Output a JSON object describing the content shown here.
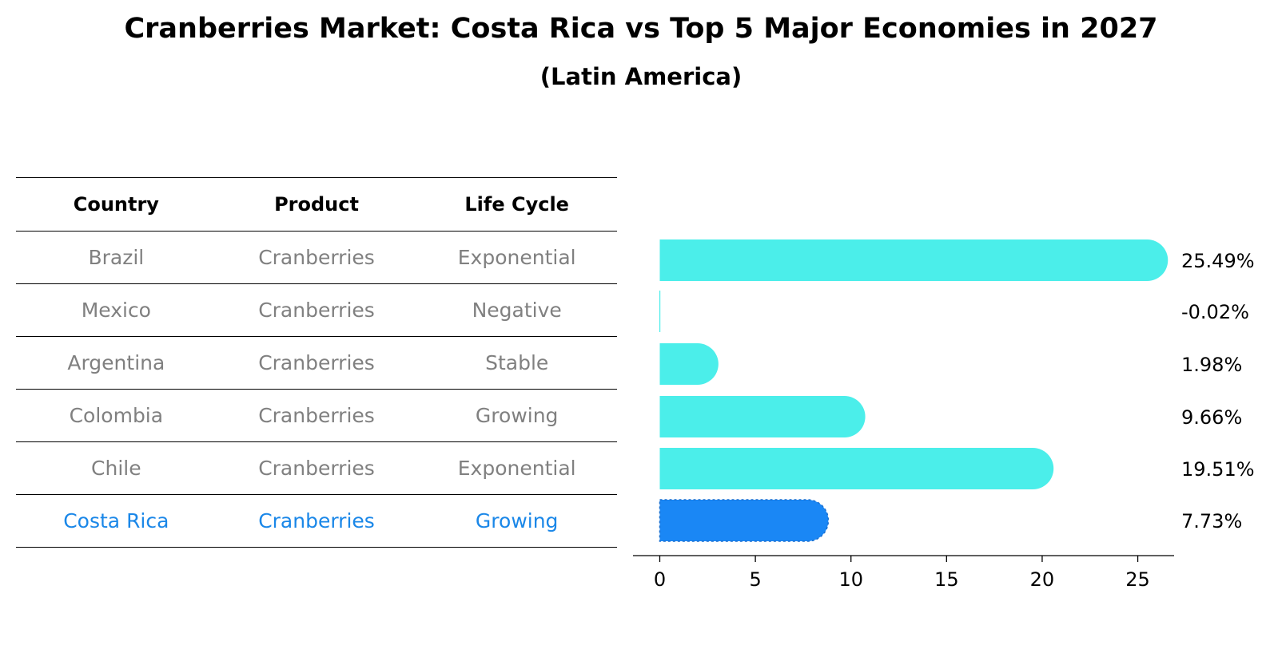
{
  "title": "Cranberries Market: Costa Rica vs Top 5 Major Economies in 2027",
  "subtitle": "(Latin America)",
  "table": {
    "headers": [
      "Country",
      "Product",
      "Life Cycle"
    ],
    "rows": [
      {
        "country": "Brazil",
        "product": "Cranberries",
        "life_cycle": "Exponential"
      },
      {
        "country": "Mexico",
        "product": "Cranberries",
        "life_cycle": "Negative"
      },
      {
        "country": "Argentina",
        "product": "Cranberries",
        "life_cycle": "Stable"
      },
      {
        "country": "Colombia",
        "product": "Cranberries",
        "life_cycle": "Growing"
      },
      {
        "country": "Chile",
        "product": "Cranberries",
        "life_cycle": "Exponential"
      },
      {
        "country": "Costa Rica",
        "product": "Cranberries",
        "life_cycle": "Growing"
      }
    ]
  },
  "chart_data": {
    "type": "bar",
    "orientation": "horizontal",
    "categories": [
      "Brazil",
      "Mexico",
      "Argentina",
      "Colombia",
      "Chile",
      "Costa Rica"
    ],
    "values": [
      25.49,
      -0.02,
      1.98,
      9.66,
      19.51,
      7.73
    ],
    "value_labels": [
      "25.49%",
      "-0.02%",
      "1.98%",
      "9.66%",
      "19.51%",
      "7.73%"
    ],
    "highlight": "Costa Rica",
    "xlim": [
      -1.4,
      26.9
    ],
    "xticks": [
      0,
      5,
      10,
      15,
      20,
      25
    ],
    "xlabel": "",
    "ylabel": "",
    "colors": {
      "bar": "#4beeea",
      "highlight": "#1a87f5",
      "highlight_text": "#1a87e8",
      "muted_text": "#808080"
    }
  }
}
